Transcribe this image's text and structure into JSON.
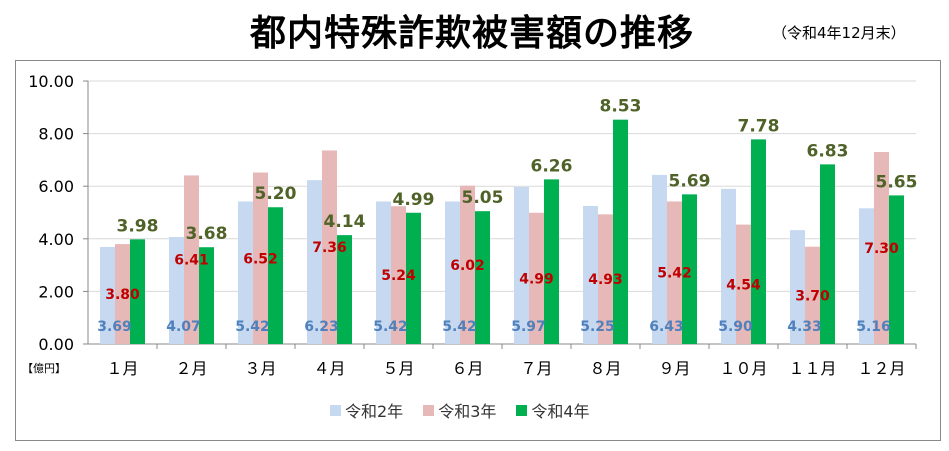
{
  "chart_data": {
    "type": "bar",
    "title": "都内特殊詐欺被害額の推移",
    "subtitle": "（令和4年12月末）",
    "unit_label": "【億円】",
    "categories": [
      "１月",
      "２月",
      "３月",
      "４月",
      "５月",
      "６月",
      "７月",
      "８月",
      "９月",
      "１０月",
      "１１月",
      "１２月"
    ],
    "ylim": [
      0,
      10
    ],
    "yticks": [
      "0.00",
      "2.00",
      "4.00",
      "6.00",
      "8.00",
      "10.00"
    ],
    "grid": true,
    "legend_position": "bottom",
    "series": [
      {
        "name": "令和2年",
        "color": "#c6d9f1",
        "label_color": "#4f81bd",
        "values": [
          3.69,
          4.07,
          5.42,
          6.23,
          5.42,
          5.42,
          5.97,
          5.25,
          6.43,
          5.9,
          4.33,
          5.16
        ],
        "labels": [
          "3.69",
          "4.07",
          "5.42",
          "6.23",
          "5.42",
          "5.42",
          "5.97",
          "5.25",
          "6.43",
          "5.90",
          "4.33",
          "5.16"
        ]
      },
      {
        "name": "令和3年",
        "color": "#e6b9b8",
        "label_color": "#c00000",
        "values": [
          3.8,
          6.41,
          6.52,
          7.36,
          5.24,
          6.02,
          4.99,
          4.93,
          5.42,
          4.54,
          3.7,
          7.3
        ],
        "labels": [
          "3.80",
          "6.41",
          "6.52",
          "7.36",
          "5.24",
          "6.02",
          "4.99",
          "4.93",
          "5.42",
          "4.54",
          "3.70",
          "7.30"
        ]
      },
      {
        "name": "令和4年",
        "color": "#00b050",
        "label_color": "#4f6228",
        "values": [
          3.98,
          3.68,
          5.2,
          4.14,
          4.99,
          5.05,
          6.26,
          8.53,
          5.69,
          7.78,
          6.83,
          5.65
        ],
        "labels": [
          "3.98",
          "3.68",
          "5.20",
          "4.14",
          "4.99",
          "5.05",
          "6.26",
          "8.53",
          "5.69",
          "7.78",
          "6.83",
          "5.65"
        ]
      }
    ]
  }
}
